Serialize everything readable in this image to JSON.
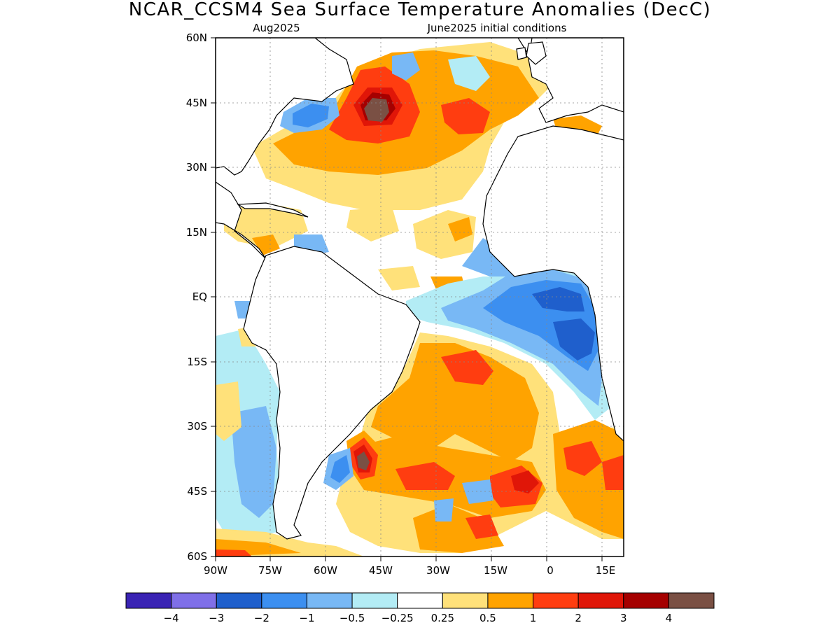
{
  "title": "NCAR_CCSM4 Sea Surface Temperature Anomalies (DecC)",
  "subtitle_left": "Aug2025",
  "subtitle_right": "June2025 initial conditions",
  "lat_labels": [
    "60N",
    "45N",
    "30N",
    "15N",
    "EQ",
    "15S",
    "30S",
    "45S",
    "60S"
  ],
  "lon_labels": [
    "90W",
    "75W",
    "60W",
    "45W",
    "30W",
    "15W",
    "0",
    "15E"
  ],
  "colorbar": {
    "colors": [
      "#3a23b4",
      "#7f6fe8",
      "#1f5fcc",
      "#3c8ff0",
      "#78b8f5",
      "#b3ecf5",
      "#ffffff",
      "#ffe17a",
      "#ffa300",
      "#ff3d10",
      "#e01608",
      "#a50000",
      "#7a5044"
    ],
    "labels": [
      "−4",
      "−3",
      "−2",
      "−1",
      "−0.5",
      "−0.25",
      "0.25",
      "0.5",
      "1",
      "2",
      "3",
      "4"
    ]
  }
}
